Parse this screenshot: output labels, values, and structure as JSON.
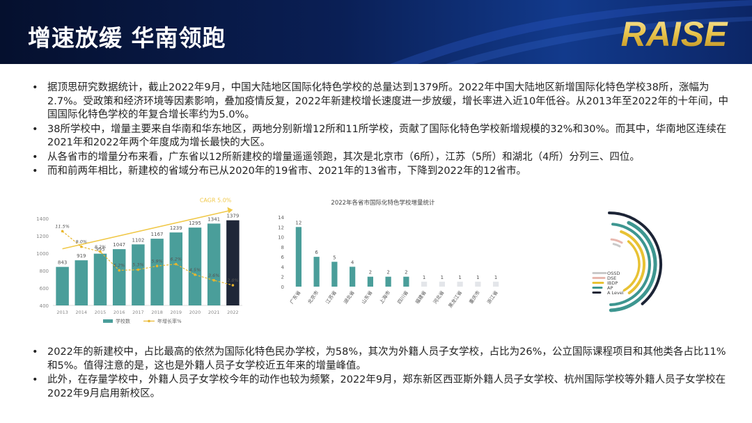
{
  "header": {
    "title": "增速放缓 华南领跑",
    "logo_text": "RAISE"
  },
  "top_bullets": [
    "据顶思研究数据统计，截止2022年9月，中国大陆地区国际化特色学校的总量达到1379所。2022年中国大陆地区新增国际化特色学校38所，涨幅为2.7%。受政策和经济环境等因素影响，叠加疫情反复，2022年新建校增长速度进一步放缓，增长率进入近10年低谷。从2013年至2022年的十年间，中国国际化特色学校的年复合增长率约为5.0%。",
    "38所学校中，增量主要来自华南和华东地区，两地分别新增12所和11所学校，贡献了国际化特色学校新增规模的32%和30%。而其中，华南地区连续在2021年和2022年两个年度成为增长最快的大区。",
    "从各省市的增量分布来看，广东省以12所新建校的增量遥遥领跑，其次是北京市（6所），江苏（5所）和湖北（4所）分列三、四位。",
    "而和前两年相比，新建校的省域分布已从2020年的19省市、2021年的13省市，下降到2022年的12省市。"
  ],
  "bottom_bullets": [
    "2022年的新建校中，占比最高的依然为国际化特色民办学校，为58%，其次为外籍人员子女学校，占比为26%，公立国际课程项目和其他类各占比11%和5%。值得注意的是，这也是外籍人员子女学校近五年来的增量峰值。",
    "此外，在存量学校中，外籍人员子女学校今年的动作也较为频繁，2022年9月，郑东新区西亚斯外籍人员子女学校、杭州国际学校等外籍人员子女学校在2022年9月启用新校区。"
  ],
  "colors": {
    "bar": "#4a9e9a",
    "bar_highlight": "#1f2738",
    "rate_line": "#e8b62c",
    "trend_line": "#f0c848",
    "arc_alevel": "#3d9690",
    "arc_ap": "#1c2436",
    "arc_ibdp": "#e8c234",
    "arc_dse": "#e8b7ae",
    "arc_ossd": "#c9c9c9"
  },
  "chart_data": [
    {
      "type": "bar",
      "title": "",
      "cagr_label": "CAGR 5.0%",
      "categories": [
        "2013",
        "2014",
        "2015",
        "2016",
        "2017",
        "2018",
        "2019",
        "2020",
        "2021",
        "2022"
      ],
      "series": [
        {
          "name": "学校数",
          "values": [
            843,
            919,
            995,
            1047,
            1102,
            1167,
            1239,
            1295,
            1341,
            1379
          ]
        },
        {
          "name": "年增长率%",
          "values": [
            11.5,
            9.0,
            8.2,
            5.2,
            5.3,
            5.9,
            6.2,
            4.5,
            3.6,
            2.8
          ]
        }
      ],
      "rate_labels": [
        "11.5%",
        "9.0%",
        "8.2%",
        "5.2%",
        "5.3%",
        "5.9%",
        "6.2%",
        "4.5%",
        "3.6%",
        "2.8%"
      ],
      "ylim": [
        400,
        1400
      ],
      "yticks": [
        400,
        600,
        800,
        1000,
        1200,
        1400
      ],
      "legend": "bottom"
    },
    {
      "type": "bar",
      "title": "2022年各省市国际化特色学校增量统计",
      "categories": [
        "广东省",
        "北京市",
        "江苏省",
        "湖北省",
        "山东省",
        "上海市",
        "四川省",
        "福建省",
        "河北省",
        "黑龙江省",
        "重庆市",
        "浙江省"
      ],
      "values": [
        12,
        6,
        5,
        4,
        2,
        2,
        2,
        1,
        1,
        1,
        1,
        1
      ],
      "ylim": [
        0,
        14
      ],
      "yticks": [
        0,
        2,
        4,
        6,
        8,
        10,
        12,
        14
      ]
    },
    {
      "type": "pie",
      "title": "",
      "categories": [
        "OSSD",
        "DSE",
        "IBDP",
        "AP",
        "A Level"
      ],
      "legend": "inside-left"
    }
  ]
}
